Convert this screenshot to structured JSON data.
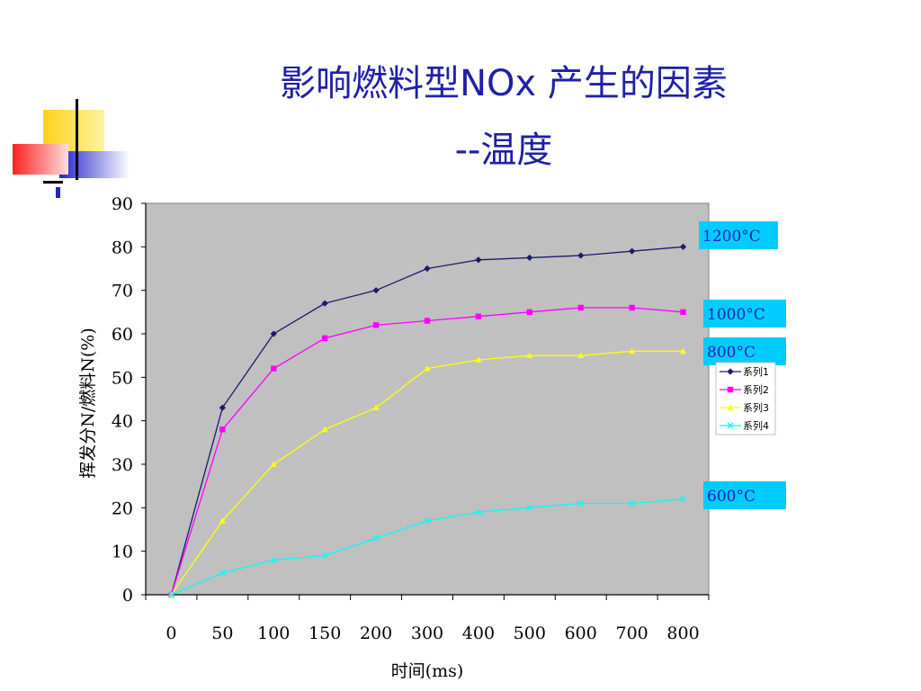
{
  "slide": {
    "title_line1": "影响燃料型NOx 产生的因素",
    "title_line2": "--温度"
  },
  "colors": {
    "title": "#1f1fa8",
    "plot_bg": "#c0c0c0",
    "annotation_bg": "#00ccff",
    "annotation_text": "#2020c0"
  },
  "chart_data": {
    "type": "line",
    "xlabel": "时间(ms)",
    "ylabel": "挥发分N/燃料N(%)",
    "categories": [
      "0",
      "50",
      "100",
      "150",
      "200",
      "300",
      "400",
      "500",
      "600",
      "700",
      "800"
    ],
    "ylim": [
      0,
      90
    ],
    "yticks": [
      "0",
      "10",
      "20",
      "30",
      "40",
      "50",
      "60",
      "70",
      "80",
      "90"
    ],
    "grid": false,
    "legend_position": "right",
    "series": [
      {
        "name": "系列1",
        "label": "1200°C",
        "color": "#1a1a6e",
        "marker": "diamond",
        "values": [
          0,
          43,
          60,
          67,
          70,
          75,
          77,
          77.5,
          78,
          79,
          80
        ]
      },
      {
        "name": "系列2",
        "label": "1000°C",
        "color": "#ff00ff",
        "marker": "square",
        "values": [
          0,
          38,
          52,
          59,
          62,
          63,
          64,
          65,
          66,
          66,
          65
        ]
      },
      {
        "name": "系列3",
        "label": "800°C",
        "color": "#ffff00",
        "marker": "triangle",
        "values": [
          0,
          17,
          30,
          38,
          43,
          52,
          54,
          55,
          55,
          56,
          56
        ]
      },
      {
        "name": "系列4",
        "label": "600°C",
        "color": "#00ffff",
        "marker": "x",
        "values": [
          0,
          5,
          8,
          9,
          13,
          17,
          19,
          20,
          21,
          21,
          22
        ]
      }
    ]
  }
}
